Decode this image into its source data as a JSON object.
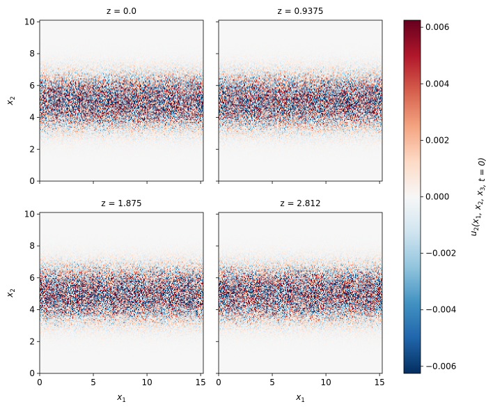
{
  "chart_data": {
    "type": "heatmap",
    "colormap": "RdBu_r",
    "colorbar": {
      "label": "u_2(x_1, x_2, x_3, t=0)",
      "label_display": {
        "base": "u",
        "sub": "2",
        "rest": "(x",
        "parts": [
          {
            "t": "u",
            "s": "2"
          },
          {
            "t": "(x",
            "s": "1"
          },
          {
            "t": ", x",
            "s": "2"
          },
          {
            "t": ", x",
            "s": "3"
          },
          {
            "t": ", t = 0)",
            "s": ""
          }
        ]
      },
      "range": [
        -0.00625,
        0.00625
      ],
      "ticks": [
        -0.006,
        -0.004,
        -0.002,
        0.0,
        0.002,
        0.004,
        0.006
      ],
      "tick_labels": [
        "−0.006",
        "−0.004",
        "−0.002",
        "0.000",
        "0.002",
        "0.004",
        "0.006"
      ]
    },
    "x_range": [
      0,
      15.25
    ],
    "y_range": [
      0,
      10.1
    ],
    "x_ticks": [
      0,
      5,
      10,
      15
    ],
    "x_tick_labels": [
      "0",
      "5",
      "10",
      "15"
    ],
    "y_ticks": [
      0,
      2,
      4,
      6,
      8,
      10
    ],
    "y_tick_labels": [
      "0",
      "2",
      "4",
      "6",
      "8",
      "10"
    ],
    "xlabel": {
      "base": "x",
      "sub": "1"
    },
    "ylabel": {
      "base": "x",
      "sub": "2"
    },
    "field_description": {
      "grid": [
        240,
        160
      ],
      "centre_x2": 5.0,
      "band_width": 1.55,
      "peak_amplitude": 0.0062
    },
    "panels": [
      {
        "title": "z = 0.0",
        "seed": 11
      },
      {
        "title": "z = 0.9375",
        "seed": 37
      },
      {
        "title": "z = 1.875",
        "seed": 73
      },
      {
        "title": "z = 2.812",
        "seed": 101
      }
    ]
  }
}
